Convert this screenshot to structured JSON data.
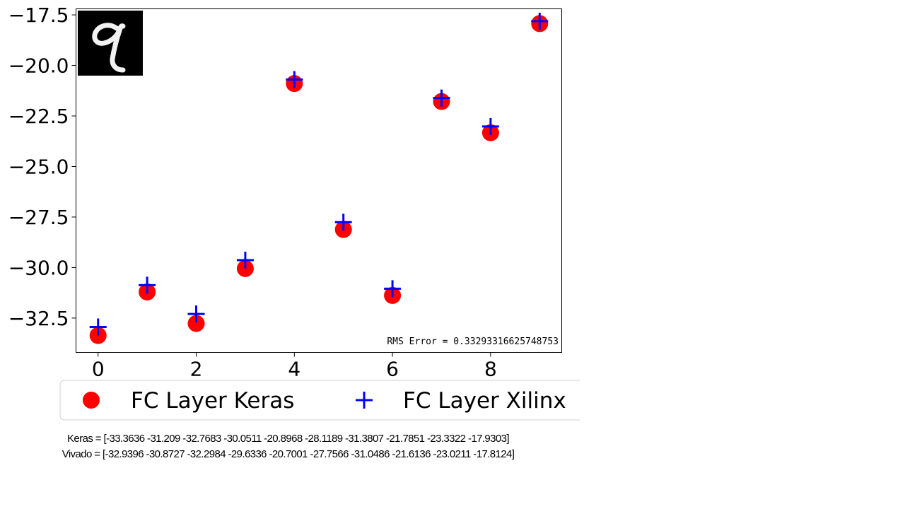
{
  "chart_data": {
    "type": "scatter",
    "x": [
      0,
      1,
      2,
      3,
      4,
      5,
      6,
      7,
      8,
      9
    ],
    "series": [
      {
        "name": "FC Layer Keras",
        "marker": "circle",
        "color": "#ff0000",
        "values": [
          -33.3636,
          -31.209,
          -32.7683,
          -30.0511,
          -20.8968,
          -28.1189,
          -31.3807,
          -21.7851,
          -23.3322,
          -17.9303
        ]
      },
      {
        "name": "FC Layer Xilinx",
        "marker": "plus",
        "color": "#0000ff",
        "values": [
          -32.9396,
          -30.8727,
          -32.2984,
          -29.6336,
          -20.7001,
          -27.7566,
          -31.0486,
          -21.6136,
          -23.0211,
          -17.8124
        ]
      }
    ],
    "xticks": [
      "0",
      "2",
      "4",
      "6",
      "8"
    ],
    "yticks": [
      "−17.5",
      "−20.0",
      "−22.5",
      "−25.0",
      "−27.5",
      "−30.0",
      "−32.5"
    ],
    "xlim": [
      -0.45,
      9.45
    ],
    "ylim": [
      -34.2,
      -17.2
    ],
    "annotation": "RMS Error = 0.33293316625748753",
    "legend_position": "bottom",
    "grid": false
  },
  "inset_image": {
    "description_icon": "handwritten-digit-nine"
  },
  "captions": {
    "keras": "Keras = [-33.3636 -31.209 -32.7683 -30.0511 -20.8968 -28.1189 -31.3807 -21.7851 -23.3322 -17.9303]",
    "vivado": "Vivado = [-32.9396 -30.8727 -32.2984 -29.6336 -20.7001 -27.7566 -31.0486 -21.6136 -23.0211 -17.8124]"
  }
}
